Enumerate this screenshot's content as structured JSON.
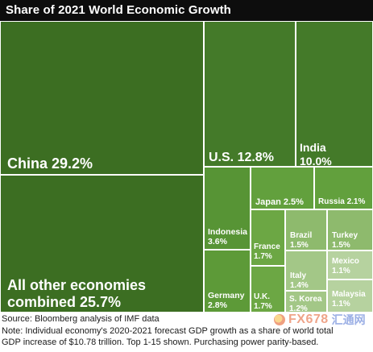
{
  "title": "Share of 2021 World Economic Growth",
  "chart_data": {
    "type": "treemap",
    "title": "Share of 2021 World Economic Growth",
    "unit": "%",
    "tiles": [
      {
        "name": "China",
        "value": 29.2,
        "display": "China 29.2%",
        "color": "#3c6e22"
      },
      {
        "name": "All other economies combined",
        "value": 25.7,
        "display": "All other economies\ncombined 25.7%",
        "color": "#3c6e22"
      },
      {
        "name": "U.S.",
        "value": 12.8,
        "display": "U.S. 12.8%",
        "color": "#447a29"
      },
      {
        "name": "India",
        "value": 10.0,
        "display": "India\n10.0%",
        "color": "#447a29"
      },
      {
        "name": "Japan",
        "value": 2.5,
        "display": "Japan 2.5%",
        "color": "#62a03d"
      },
      {
        "name": "Russia",
        "value": 2.1,
        "display": "Russia 2.1%",
        "color": "#62a03d"
      },
      {
        "name": "Indonesia",
        "value": 3.6,
        "display": "Indonesia\n3.6%",
        "color": "#579435"
      },
      {
        "name": "Germany",
        "value": 2.8,
        "display": "Germany\n2.8%",
        "color": "#5d9a38"
      },
      {
        "name": "France",
        "value": 1.7,
        "display": "France\n1.7%",
        "color": "#6ca744"
      },
      {
        "name": "U.K.",
        "value": 1.7,
        "display": "U.K.\n1.7%",
        "color": "#6ca744"
      },
      {
        "name": "Brazil",
        "value": 1.5,
        "display": "Brazil\n1.5%",
        "color": "#8eba6d"
      },
      {
        "name": "Turkey",
        "value": 1.5,
        "display": "Turkey\n1.5%",
        "color": "#8eba6d"
      },
      {
        "name": "Italy",
        "value": 1.4,
        "display": "Italy\n1.4%",
        "color": "#a3c787"
      },
      {
        "name": "Mexico",
        "value": 1.1,
        "display": "Mexico\n1.1%",
        "color": "#b6d29f"
      },
      {
        "name": "S. Korea",
        "value": 1.2,
        "display": "S. Korea\n1.2%",
        "color": "#a3c787"
      },
      {
        "name": "Malaysia",
        "value": 1.1,
        "display": "Malaysia\n1.1%",
        "color": "#b6d29f"
      }
    ]
  },
  "source_lines": [
    "Source: Bloomberg analysis of IMF data",
    "Note: Individual economy's 2020-2021 forecast GDP growth as a share of world total",
    "GDP increase of $10.78 trillion. Top 1-15 shown. Purchasing power parity-based."
  ],
  "watermark": {
    "latin": "FX678",
    "cn": "汇通网"
  }
}
